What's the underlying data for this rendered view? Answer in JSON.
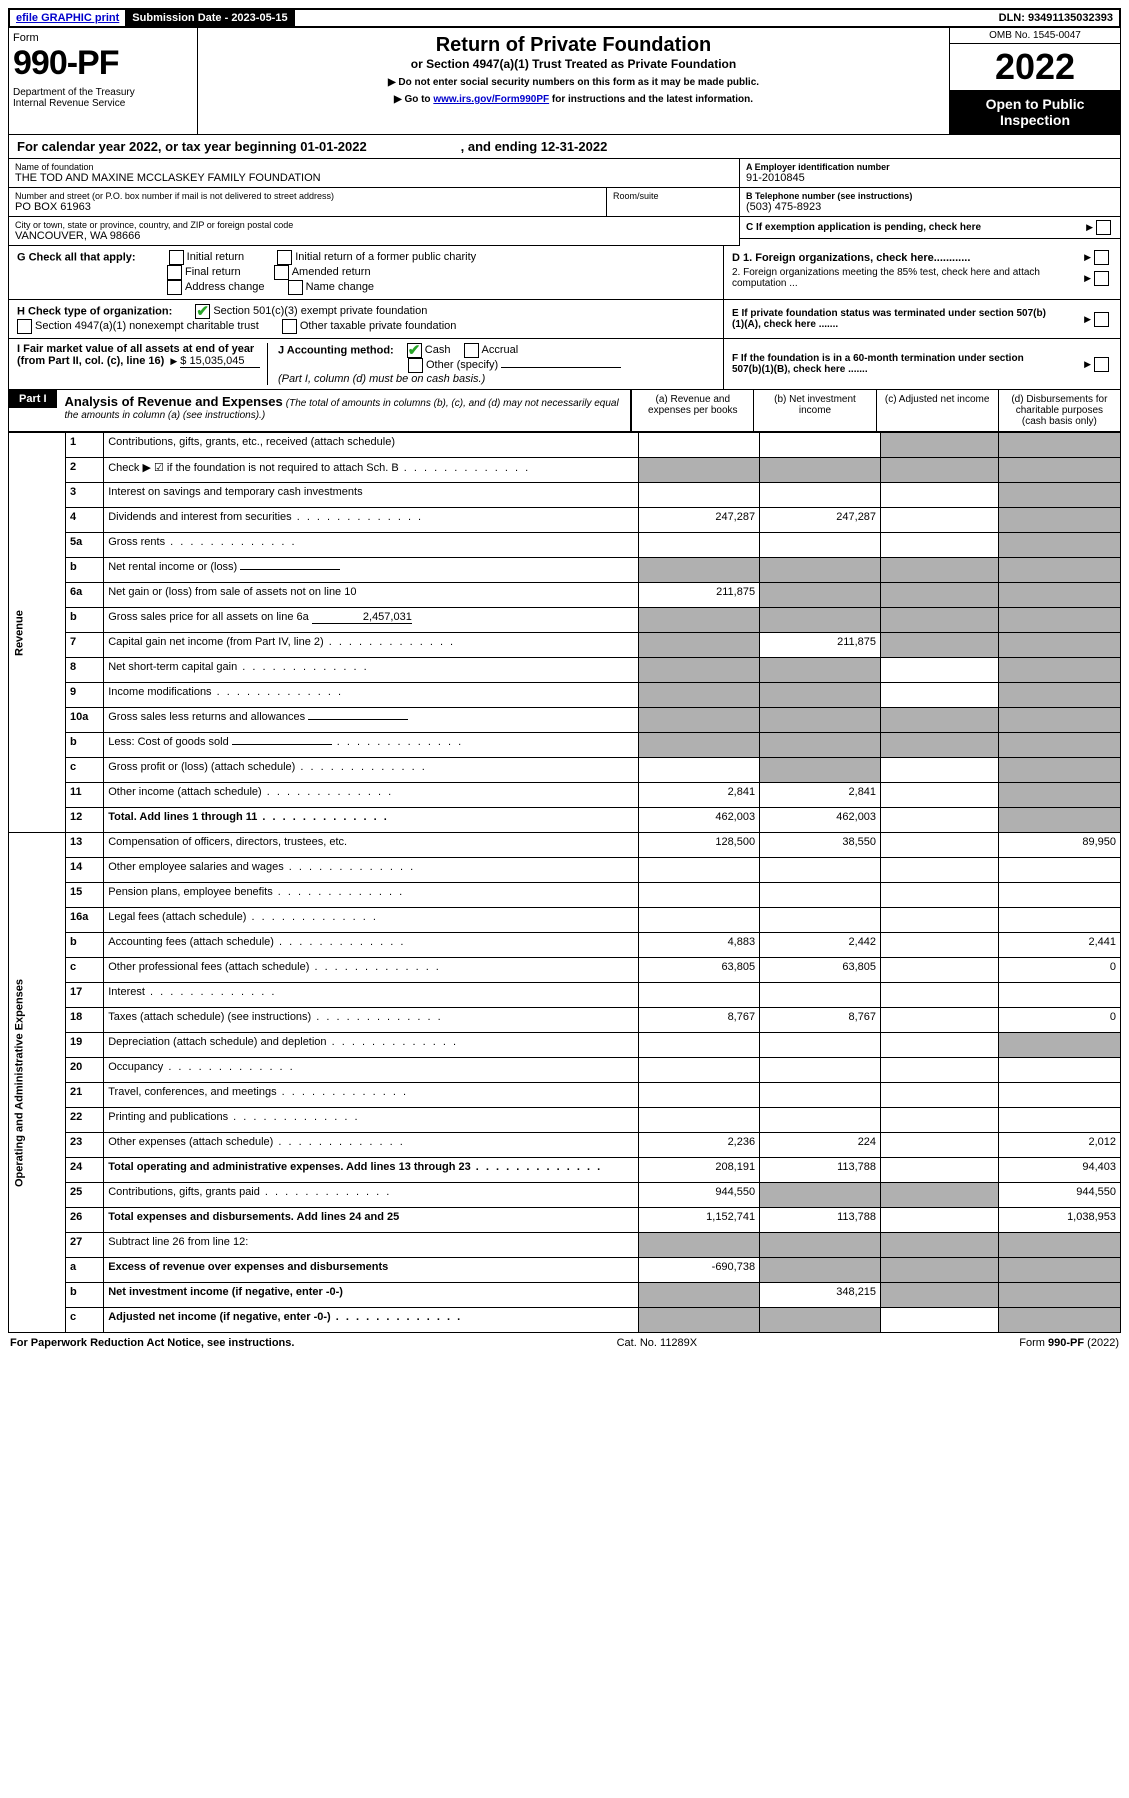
{
  "top": {
    "efile": "efile GRAPHIC print",
    "submission_label": "Submission Date - 2023-05-15",
    "dln": "DLN: 93491135032393"
  },
  "header": {
    "form_label": "Form",
    "form_no": "990-PF",
    "dept": "Department of the Treasury\nInternal Revenue Service",
    "title": "Return of Private Foundation",
    "subtitle": "or Section 4947(a)(1) Trust Treated as Private Foundation",
    "instr1": "▶ Do not enter social security numbers on this form as it may be made public.",
    "instr2_pre": "▶ Go to ",
    "instr2_link": "www.irs.gov/Form990PF",
    "instr2_post": " for instructions and the latest information.",
    "omb": "OMB No. 1545-0047",
    "year": "2022",
    "open": "Open to Public Inspection"
  },
  "calendar": "For calendar year 2022, or tax year beginning 01-01-2022                          , and ending 12-31-2022",
  "foundation": {
    "name_lbl": "Name of foundation",
    "name": "THE TOD AND MAXINE MCCLASKEY FAMILY FOUNDATION",
    "street_lbl": "Number and street (or P.O. box number if mail is not delivered to street address)",
    "street": "PO BOX 61963",
    "room_lbl": "Room/suite",
    "city_lbl": "City or town, state or province, country, and ZIP or foreign postal code",
    "city": "VANCOUVER, WA  98666",
    "ein_lbl": "A Employer identification number",
    "ein": "91-2010845",
    "tel_lbl": "B Telephone number (see instructions)",
    "tel": "(503) 475-8923",
    "pending": "C If exemption application is pending, check here"
  },
  "checks": {
    "g_label": "G Check all that apply:",
    "g_opts": [
      "Initial return",
      "Initial return of a former public charity",
      "Final return",
      "Amended return",
      "Address change",
      "Name change"
    ],
    "h_label": "H Check type of organization:",
    "h_opts": [
      "Section 501(c)(3) exempt private foundation",
      "Section 4947(a)(1) nonexempt charitable trust",
      "Other taxable private foundation"
    ],
    "d1": "D 1. Foreign organizations, check here............",
    "d2": "2. Foreign organizations meeting the 85% test, check here and attach computation ...",
    "e": "E  If private foundation status was terminated under section 507(b)(1)(A), check here .......",
    "i_label": "I Fair market value of all assets at end of year (from Part II, col. (c), line 16)",
    "i_val": "$  15,035,045",
    "j_label": "J Accounting method:",
    "j_cash": "Cash",
    "j_accrual": "Accrual",
    "j_other": "Other (specify)",
    "j_note": "(Part I, column (d) must be on cash basis.)",
    "f": "F  If the foundation is in a 60-month termination under section 507(b)(1)(B), check here ......."
  },
  "part1": {
    "label": "Part I",
    "title": "Analysis of Revenue and Expenses",
    "title_note": "(The total of amounts in columns (b), (c), and (d) may not necessarily equal the amounts in column (a) (see instructions).)",
    "cols": [
      "(a)   Revenue and expenses per books",
      "(b)   Net investment income",
      "(c)   Adjusted net income",
      "(d)   Disbursements for charitable purposes (cash basis only)"
    ],
    "revenue_label": "Revenue",
    "expenses_label": "Operating and Administrative Expenses",
    "rows": [
      {
        "n": "1",
        "d": "Contributions, gifts, grants, etc., received (attach schedule)",
        "a": "",
        "b": "",
        "c": "s",
        "dd": "s"
      },
      {
        "n": "2",
        "d": "Check ▶ ☑ if the foundation is not required to attach Sch. B",
        "dot": true,
        "a": "s",
        "b": "s",
        "c": "s",
        "dd": "s"
      },
      {
        "n": "3",
        "d": "Interest on savings and temporary cash investments",
        "a": "",
        "b": "",
        "c": "",
        "dd": "s"
      },
      {
        "n": "4",
        "d": "Dividends and interest from securities",
        "dot": true,
        "a": "247,287",
        "b": "247,287",
        "c": "",
        "dd": "s"
      },
      {
        "n": "5a",
        "d": "Gross rents",
        "dot": true,
        "a": "",
        "b": "",
        "c": "",
        "dd": "s"
      },
      {
        "n": "b",
        "d": "Net rental income or (loss)",
        "inline": "",
        "a": "s",
        "b": "s",
        "c": "s",
        "dd": "s"
      },
      {
        "n": "6a",
        "d": "Net gain or (loss) from sale of assets not on line 10",
        "a": "211,875",
        "b": "s",
        "c": "s",
        "dd": "s"
      },
      {
        "n": "b",
        "d": "Gross sales price for all assets on line 6a",
        "inline": "2,457,031",
        "a": "s",
        "b": "s",
        "c": "s",
        "dd": "s"
      },
      {
        "n": "7",
        "d": "Capital gain net income (from Part IV, line 2)",
        "dot": true,
        "a": "s",
        "b": "211,875",
        "c": "s",
        "dd": "s"
      },
      {
        "n": "8",
        "d": "Net short-term capital gain",
        "dot": true,
        "a": "s",
        "b": "s",
        "c": "",
        "dd": "s"
      },
      {
        "n": "9",
        "d": "Income modifications",
        "dot": true,
        "a": "s",
        "b": "s",
        "c": "",
        "dd": "s"
      },
      {
        "n": "10a",
        "d": "Gross sales less returns and allowances",
        "inline": "",
        "a": "s",
        "b": "s",
        "c": "s",
        "dd": "s"
      },
      {
        "n": "b",
        "d": "Less: Cost of goods sold",
        "dot": true,
        "inline": "",
        "a": "s",
        "b": "s",
        "c": "s",
        "dd": "s"
      },
      {
        "n": "c",
        "d": "Gross profit or (loss) (attach schedule)",
        "dot": true,
        "a": "",
        "b": "s",
        "c": "",
        "dd": "s"
      },
      {
        "n": "11",
        "d": "Other income (attach schedule)",
        "dot": true,
        "a": "2,841",
        "b": "2,841",
        "c": "",
        "dd": "s"
      },
      {
        "n": "12",
        "d": "Total. Add lines 1 through 11",
        "dot": true,
        "bold": true,
        "a": "462,003",
        "b": "462,003",
        "c": "",
        "dd": "s"
      }
    ],
    "exp_rows": [
      {
        "n": "13",
        "d": "Compensation of officers, directors, trustees, etc.",
        "a": "128,500",
        "b": "38,550",
        "c": "",
        "dd": "89,950"
      },
      {
        "n": "14",
        "d": "Other employee salaries and wages",
        "dot": true,
        "a": "",
        "b": "",
        "c": "",
        "dd": ""
      },
      {
        "n": "15",
        "d": "Pension plans, employee benefits",
        "dot": true,
        "a": "",
        "b": "",
        "c": "",
        "dd": ""
      },
      {
        "n": "16a",
        "d": "Legal fees (attach schedule)",
        "dot": true,
        "a": "",
        "b": "",
        "c": "",
        "dd": ""
      },
      {
        "n": "b",
        "d": "Accounting fees (attach schedule)",
        "dot": true,
        "a": "4,883",
        "b": "2,442",
        "c": "",
        "dd": "2,441"
      },
      {
        "n": "c",
        "d": "Other professional fees (attach schedule)",
        "dot": true,
        "a": "63,805",
        "b": "63,805",
        "c": "",
        "dd": "0"
      },
      {
        "n": "17",
        "d": "Interest",
        "dot": true,
        "a": "",
        "b": "",
        "c": "",
        "dd": ""
      },
      {
        "n": "18",
        "d": "Taxes (attach schedule) (see instructions)",
        "dot": true,
        "a": "8,767",
        "b": "8,767",
        "c": "",
        "dd": "0"
      },
      {
        "n": "19",
        "d": "Depreciation (attach schedule) and depletion",
        "dot": true,
        "a": "",
        "b": "",
        "c": "",
        "dd": "s"
      },
      {
        "n": "20",
        "d": "Occupancy",
        "dot": true,
        "a": "",
        "b": "",
        "c": "",
        "dd": ""
      },
      {
        "n": "21",
        "d": "Travel, conferences, and meetings",
        "dot": true,
        "a": "",
        "b": "",
        "c": "",
        "dd": ""
      },
      {
        "n": "22",
        "d": "Printing and publications",
        "dot": true,
        "a": "",
        "b": "",
        "c": "",
        "dd": ""
      },
      {
        "n": "23",
        "d": "Other expenses (attach schedule)",
        "dot": true,
        "a": "2,236",
        "b": "224",
        "c": "",
        "dd": "2,012"
      },
      {
        "n": "24",
        "d": "Total operating and administrative expenses. Add lines 13 through 23",
        "dot": true,
        "bold": true,
        "a": "208,191",
        "b": "113,788",
        "c": "",
        "dd": "94,403"
      },
      {
        "n": "25",
        "d": "Contributions, gifts, grants paid",
        "dot": true,
        "a": "944,550",
        "b": "s",
        "c": "s",
        "dd": "944,550"
      },
      {
        "n": "26",
        "d": "Total expenses and disbursements. Add lines 24 and 25",
        "bold": true,
        "a": "1,152,741",
        "b": "113,788",
        "c": "",
        "dd": "1,038,953"
      },
      {
        "n": "27",
        "d": "Subtract line 26 from line 12:",
        "a": "s",
        "b": "s",
        "c": "s",
        "dd": "s"
      },
      {
        "n": "a",
        "d": "Excess of revenue over expenses and disbursements",
        "bold": true,
        "a": "-690,738",
        "b": "s",
        "c": "s",
        "dd": "s"
      },
      {
        "n": "b",
        "d": "Net investment income (if negative, enter -0-)",
        "bold": true,
        "a": "s",
        "b": "348,215",
        "c": "s",
        "dd": "s"
      },
      {
        "n": "c",
        "d": "Adjusted net income (if negative, enter -0-)",
        "dot": true,
        "bold": true,
        "a": "s",
        "b": "s",
        "c": "",
        "dd": "s"
      }
    ]
  },
  "footer": {
    "left": "For Paperwork Reduction Act Notice, see instructions.",
    "mid": "Cat. No. 11289X",
    "right": "Form 990-PF (2022)"
  }
}
